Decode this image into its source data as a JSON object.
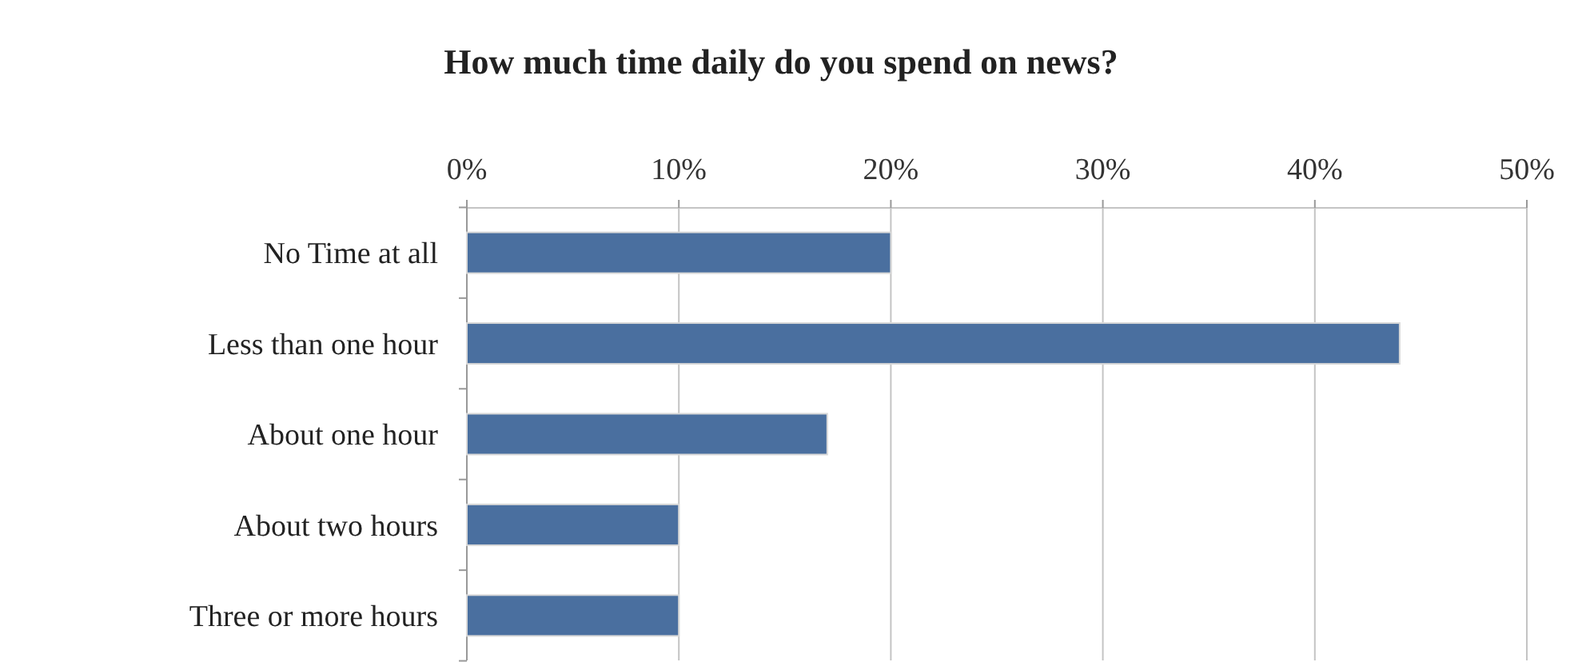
{
  "chart_data": {
    "type": "bar",
    "orientation": "horizontal",
    "title": "How much time daily do you spend on news?",
    "categories": [
      "No Time at all",
      "Less than one hour",
      "About one hour",
      "About two hours",
      "Three or more hours"
    ],
    "values": [
      20,
      44,
      17,
      10,
      10
    ],
    "color": "#4a6f9f",
    "xlim": [
      0,
      50
    ],
    "xticks": [
      {
        "value": 0,
        "label": "0%"
      },
      {
        "value": 10,
        "label": "10%"
      },
      {
        "value": 20,
        "label": "20%"
      },
      {
        "value": 30,
        "label": "30%"
      },
      {
        "value": 40,
        "label": "40%"
      },
      {
        "value": 50,
        "label": "50%"
      }
    ],
    "grid": "x"
  }
}
